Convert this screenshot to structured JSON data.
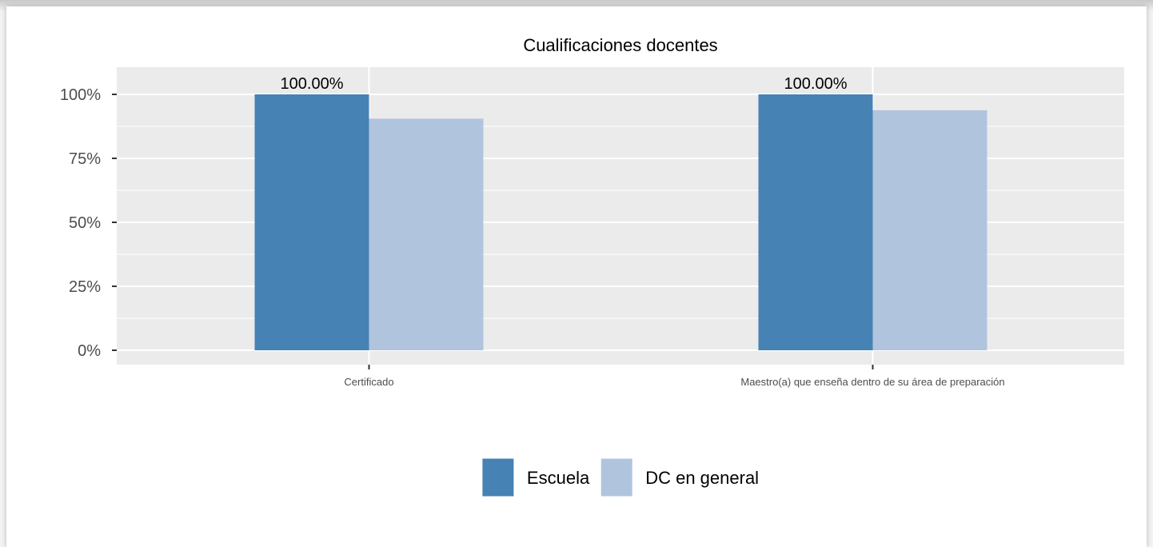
{
  "chart_data": {
    "type": "bar",
    "title": "Cualificaciones docentes",
    "categories": [
      "Certificado",
      "Maestro(a) que enseña dentro de su área de preparación"
    ],
    "series": [
      {
        "name": "Escuela",
        "values": [
          100,
          100
        ],
        "color": "#4682b4",
        "data_labels": [
          "100.00%",
          "100.00%"
        ]
      },
      {
        "name": "DC en general",
        "values": [
          90.5,
          93.8
        ],
        "color": "#b0c4de"
      }
    ],
    "ylim": [
      0,
      105.5
    ],
    "yticks": [
      0,
      25,
      50,
      75,
      100
    ],
    "ytick_labels": [
      "0%",
      "25%",
      "50%",
      "75%",
      "100%"
    ],
    "xlabel": "",
    "ylabel": "",
    "grid": true,
    "legend_position": "bottom",
    "panel_background": "#ebebeb"
  }
}
